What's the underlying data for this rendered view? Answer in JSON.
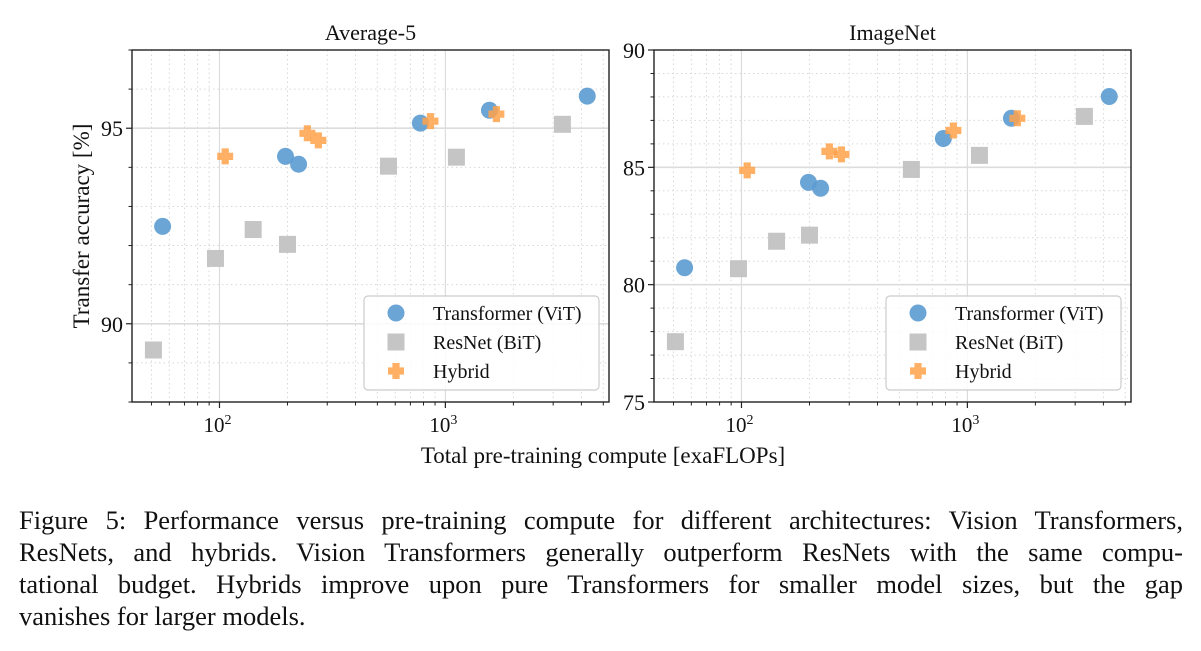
{
  "chart_data": [
    {
      "type": "scatter",
      "title": "Average-5",
      "xlabel": "Total pre-training compute [exaFLOPs]",
      "ylabel": "Transfer accuracy [%]",
      "xscale": "log",
      "xlim": [
        41,
        5300
      ],
      "ylim": [
        88,
        97
      ],
      "xticks": [
        {
          "value": 100,
          "label": "10",
          "exp": "2"
        },
        {
          "value": 1000,
          "label": "10",
          "exp": "3"
        }
      ],
      "yticks": [
        {
          "value": 90,
          "label": "90"
        },
        {
          "value": 95,
          "label": "95"
        }
      ],
      "yminor": [
        88,
        89,
        91,
        92,
        93,
        94,
        96,
        97
      ],
      "grid": true,
      "legend": "bottom-right",
      "series": [
        {
          "name": "Transformer (ViT)",
          "marker": "circle",
          "color": "#5b9bd0",
          "points": [
            [
              56,
              92.49
            ],
            [
              196,
              94.28
            ],
            [
              224,
              94.08
            ],
            [
              775,
              95.13
            ],
            [
              1567,
              95.46
            ],
            [
              4246,
              95.82
            ]
          ]
        },
        {
          "name": "ResNet (BiT)",
          "marker": "square",
          "color": "#c2c2c2",
          "points": [
            [
              51,
              89.33
            ],
            [
              96,
              91.67
            ],
            [
              141,
              92.41
            ],
            [
              200,
              92.03
            ],
            [
              560,
              94.03
            ],
            [
              1119,
              94.26
            ],
            [
              3297,
              95.1
            ]
          ]
        },
        {
          "name": "Hybrid",
          "marker": "plus",
          "color": "#ffa24a",
          "points": [
            [
              106,
              94.28
            ],
            [
              245,
              94.87
            ],
            [
              274,
              94.69
            ],
            [
              859,
              95.18
            ],
            [
              1682,
              95.36
            ]
          ]
        }
      ]
    },
    {
      "type": "scatter",
      "title": "ImageNet",
      "xlabel": "Total pre-training compute [exaFLOPs]",
      "ylabel": "",
      "xscale": "log",
      "xlim": [
        41,
        5300
      ],
      "ylim": [
        75,
        90
      ],
      "xticks": [
        {
          "value": 100,
          "label": "10",
          "exp": "2"
        },
        {
          "value": 1000,
          "label": "10",
          "exp": "3"
        }
      ],
      "yticks": [
        {
          "value": 75,
          "label": "75"
        },
        {
          "value": 80,
          "label": "80"
        },
        {
          "value": 85,
          "label": "85"
        },
        {
          "value": 90,
          "label": "90"
        }
      ],
      "yminor": [
        76,
        77,
        78,
        79,
        81,
        82,
        83,
        84,
        86,
        87,
        88,
        89
      ],
      "grid": true,
      "legend": "bottom-right",
      "series": [
        {
          "name": "Transformer (ViT)",
          "marker": "circle",
          "color": "#5b9bd0",
          "points": [
            [
              56,
              80.72
            ],
            [
              198,
              84.36
            ],
            [
              224,
              84.11
            ],
            [
              783,
              86.23
            ],
            [
              1567,
              87.09
            ],
            [
              4246,
              88.02
            ]
          ]
        },
        {
          "name": "ResNet (BiT)",
          "marker": "square",
          "color": "#c2c2c2",
          "points": [
            [
              51,
              77.57
            ],
            [
              97,
              80.68
            ],
            [
              143,
              81.85
            ],
            [
              200,
              82.11
            ],
            [
              565,
              84.91
            ],
            [
              1131,
              85.51
            ],
            [
              3297,
              87.17
            ]
          ]
        },
        {
          "name": "Hybrid",
          "marker": "plus",
          "color": "#ffa24a",
          "points": [
            [
              106,
              84.87
            ],
            [
              245,
              85.68
            ],
            [
              277,
              85.55
            ],
            [
              867,
              86.57
            ],
            [
              1664,
              87.09
            ]
          ]
        }
      ]
    }
  ],
  "figure": {
    "shared_xlabel": "Total pre-training compute [exaFLOPs]"
  },
  "caption": {
    "lines": [
      "Figure 5: Performance versus pre-training compute for different architectures: Vision Transformers,",
      "ResNets, and hybrids.  Vision Transformers generally outperform ResNets with the same compu-",
      "tational budget.  Hybrids improve upon pure Transformers for smaller model sizes, but the gap",
      "vanishes for larger models."
    ]
  }
}
